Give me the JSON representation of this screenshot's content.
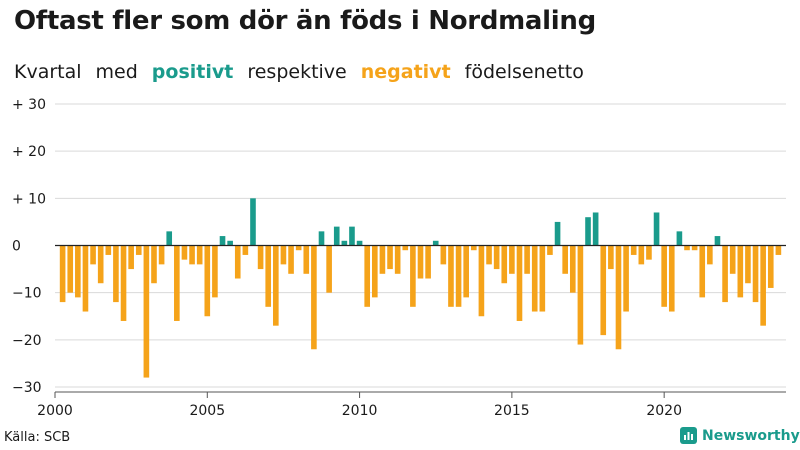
{
  "header": {
    "title": "Oftast fler som dör än föds i Nordmaling",
    "subtitle": {
      "w1": "Kvartal",
      "w2": "med",
      "positive": "positivt",
      "w3": "respektive",
      "negative": "negativt",
      "w4": "födelsenetto"
    }
  },
  "footer": {
    "source": "Källa: SCB",
    "brand": "Newsworthy"
  },
  "colors": {
    "positive": "#1a9b8c",
    "negative": "#f5a31a",
    "grid": "#d9d9d9",
    "zero": "#222222"
  },
  "chart_data": {
    "type": "bar",
    "title": "Oftast fler som dör än föds i Nordmaling",
    "subtitle": "Kvartal med positivt respektive negativt födelsenetto",
    "xlabel": "",
    "ylabel": "",
    "start_year": 2000,
    "periods_per_year": 4,
    "ylim": [
      -30,
      30
    ],
    "yticks": [
      30,
      20,
      10,
      0,
      -10,
      -20,
      -30
    ],
    "ytick_labels": [
      "+ 30",
      "+ 20",
      "+ 10",
      "0",
      "−10",
      "−20",
      "−30"
    ],
    "xticks": [
      "2000",
      "2005",
      "2010",
      "2015",
      "2020"
    ],
    "grid": true,
    "values": [
      -12,
      -10,
      -11,
      -14,
      -4,
      -8,
      -2,
      -12,
      -16,
      -5,
      -2,
      -28,
      -8,
      -4,
      3,
      -16,
      -3,
      -4,
      -4,
      -15,
      -11,
      2,
      1,
      -7,
      -2,
      10,
      -5,
      -13,
      -17,
      -4,
      -6,
      -1,
      -6,
      -22,
      3,
      -10,
      4,
      1,
      4,
      1,
      -13,
      -11,
      -6,
      -5,
      -6,
      -1,
      -13,
      -7,
      -7,
      1,
      -4,
      -13,
      -13,
      -11,
      -1,
      -15,
      -4,
      -5,
      -8,
      -6,
      -16,
      -6,
      -14,
      -14,
      -2,
      5,
      -6,
      -10,
      -21,
      6,
      7,
      -19,
      -5,
      -22,
      -14,
      -2,
      -4,
      -3,
      7,
      -13,
      -14,
      3,
      -1,
      -1,
      -11,
      -4,
      2,
      -12,
      -6,
      -11,
      -8,
      -12,
      -17,
      -9,
      -2
    ]
  }
}
